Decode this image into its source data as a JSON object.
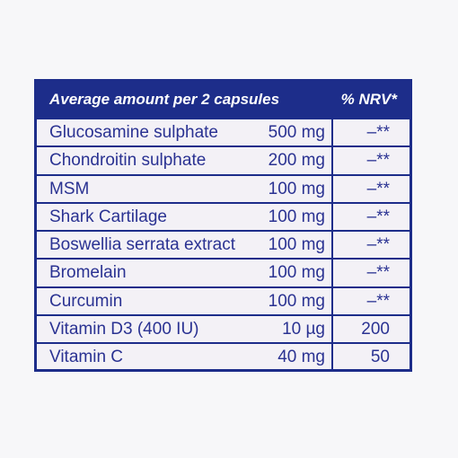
{
  "table": {
    "header": {
      "nutrient_col": "Average amount per 2 capsules",
      "nrv_col": "% NRV*"
    },
    "rows": [
      {
        "name": "Glucosamine sulphate",
        "amount": "500 mg",
        "nrv": "–**"
      },
      {
        "name": "Chondroitin sulphate",
        "amount": "200 mg",
        "nrv": "–**"
      },
      {
        "name": "MSM",
        "amount": "100 mg",
        "nrv": "–**"
      },
      {
        "name": "Shark Cartilage",
        "amount": "100 mg",
        "nrv": "–**"
      },
      {
        "name": "Boswellia serrata extract",
        "amount": "100 mg",
        "nrv": "–**"
      },
      {
        "name": "Bromelain",
        "amount": "100 mg",
        "nrv": "–**"
      },
      {
        "name": "Curcumin",
        "amount": "100 mg",
        "nrv": "–**"
      },
      {
        "name": "Vitamin D3 (400 IU)",
        "amount": "10 µg",
        "nrv": "200"
      },
      {
        "name": "Vitamin C",
        "amount": "40 mg",
        "nrv": "50"
      }
    ]
  },
  "colors": {
    "border": "#1d2d8a",
    "text": "#2a3292",
    "background": "#f3f1f6"
  }
}
